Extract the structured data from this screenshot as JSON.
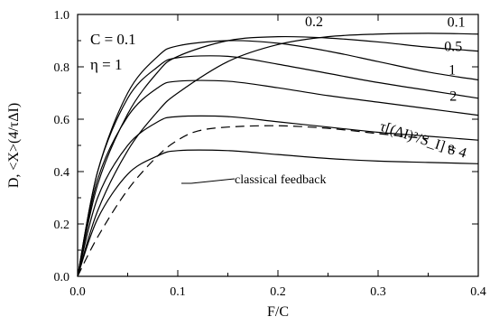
{
  "chart_data": {
    "type": "line",
    "xlabel": "F/C",
    "ylabel": "D, <X>(4/τΔI)",
    "xlim": [
      0.0,
      0.4
    ],
    "ylim": [
      0.0,
      1.0
    ],
    "x_ticks": [
      "0.0",
      "0.1",
      "0.2",
      "0.3",
      "0.4"
    ],
    "y_ticks": [
      "0.0",
      "0.2",
      "0.4",
      "0.6",
      "0.8",
      "1.0"
    ],
    "grid": false,
    "annotations": {
      "param_c": "C = 0.1",
      "param_eta": "η = 1",
      "tau_label": "τ[(ΔI)²/S_I] = 4",
      "classical_label": "classical feedback"
    },
    "series": [
      {
        "name": "0.1",
        "style": "solid",
        "x": [
          0.0,
          0.02,
          0.05,
          0.08,
          0.1,
          0.15,
          0.2,
          0.25,
          0.3,
          0.35,
          0.4
        ],
        "y": [
          0.0,
          0.25,
          0.48,
          0.63,
          0.7,
          0.82,
          0.885,
          0.915,
          0.925,
          0.928,
          0.925
        ]
      },
      {
        "name": "0.2",
        "style": "solid",
        "x": [
          0.0,
          0.02,
          0.05,
          0.08,
          0.1,
          0.15,
          0.2,
          0.25,
          0.3,
          0.35,
          0.4
        ],
        "y": [
          0.0,
          0.35,
          0.62,
          0.78,
          0.84,
          0.9,
          0.915,
          0.91,
          0.895,
          0.875,
          0.86
        ]
      },
      {
        "name": "0.5",
        "style": "solid",
        "x": [
          0.0,
          0.02,
          0.05,
          0.08,
          0.1,
          0.15,
          0.2,
          0.25,
          0.3,
          0.35,
          0.4
        ],
        "y": [
          0.0,
          0.4,
          0.7,
          0.84,
          0.88,
          0.9,
          0.89,
          0.86,
          0.82,
          0.78,
          0.75
        ]
      },
      {
        "name": "1",
        "style": "solid",
        "x": [
          0.0,
          0.02,
          0.05,
          0.08,
          0.1,
          0.15,
          0.2,
          0.25,
          0.3,
          0.35,
          0.4
        ],
        "y": [
          0.0,
          0.4,
          0.68,
          0.8,
          0.835,
          0.84,
          0.81,
          0.775,
          0.74,
          0.71,
          0.68
        ]
      },
      {
        "name": "2",
        "style": "solid",
        "x": [
          0.0,
          0.02,
          0.05,
          0.08,
          0.1,
          0.15,
          0.2,
          0.25,
          0.3,
          0.35,
          0.4
        ],
        "y": [
          0.0,
          0.37,
          0.61,
          0.72,
          0.745,
          0.745,
          0.72,
          0.69,
          0.665,
          0.64,
          0.615
        ]
      },
      {
        "name": "4",
        "style": "solid",
        "x": [
          0.0,
          0.02,
          0.05,
          0.08,
          0.1,
          0.15,
          0.2,
          0.25,
          0.3,
          0.35,
          0.4
        ],
        "y": [
          0.0,
          0.3,
          0.5,
          0.59,
          0.61,
          0.61,
          0.59,
          0.57,
          0.55,
          0.535,
          0.52
        ]
      },
      {
        "name": "8",
        "style": "solid",
        "x": [
          0.0,
          0.02,
          0.05,
          0.08,
          0.1,
          0.15,
          0.2,
          0.25,
          0.3,
          0.35,
          0.4
        ],
        "y": [
          0.0,
          0.22,
          0.39,
          0.46,
          0.48,
          0.48,
          0.465,
          0.45,
          0.44,
          0.435,
          0.43
        ]
      },
      {
        "name": "classical feedback",
        "style": "dashed",
        "x": [
          0.0,
          0.02,
          0.05,
          0.08,
          0.1,
          0.12,
          0.15,
          0.2,
          0.25,
          0.3,
          0.35
        ],
        "y": [
          0.0,
          0.15,
          0.33,
          0.46,
          0.52,
          0.555,
          0.57,
          0.575,
          0.565,
          0.545,
          0.525
        ]
      }
    ],
    "series_labels": [
      "0.2",
      "0.1",
      "0.5",
      "1",
      "2",
      "8"
    ],
    "colors": {
      "line": "#000000",
      "axis": "#000000",
      "background": "#ffffff"
    }
  }
}
